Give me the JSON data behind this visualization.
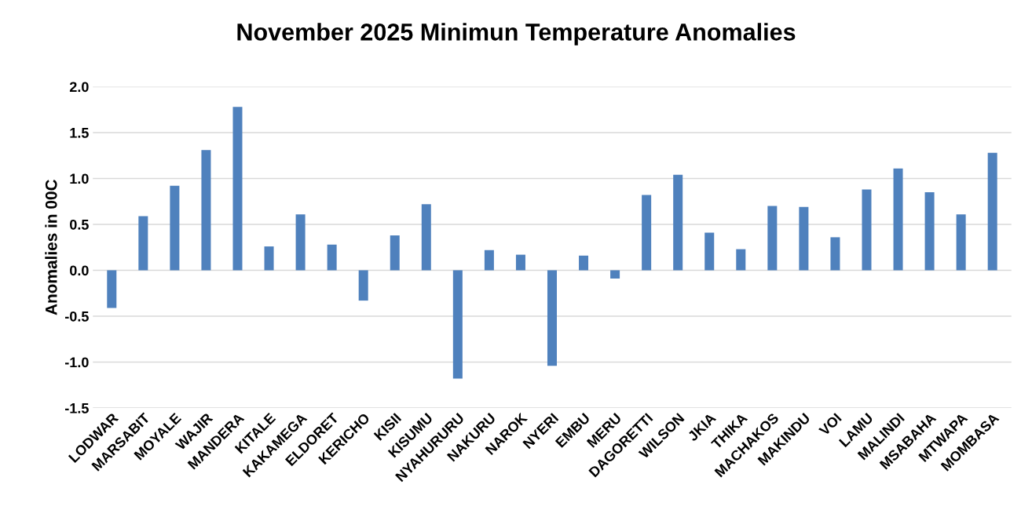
{
  "chart_data": {
    "type": "bar",
    "title": "November 2025 Minimun Temperature Anomalies",
    "ylabel": "Anomalies in 00C",
    "categories": [
      "LODWAR",
      "MARSABIT",
      "MOYALE",
      "WAJIR",
      "MANDERA",
      "KITALE",
      "KAKAMEGA",
      "ELDORET",
      "KERICHO",
      "KISII",
      "KISUMU",
      "NYAHURURU",
      "NAKURU",
      "NAROK",
      "NYERI",
      "EMBU",
      "MERU",
      "DAGORETTI",
      "WILSON",
      "JKIA",
      "THIKA",
      "MACHAKOS",
      "MAKINDU",
      "VOI",
      "LAMU",
      "MALINDI",
      "MSABAHA",
      "MTWAPA",
      "MOMBASA"
    ],
    "values": [
      -0.41,
      0.59,
      0.92,
      1.31,
      1.78,
      0.26,
      0.61,
      0.28,
      -0.33,
      0.38,
      0.72,
      -1.18,
      0.22,
      0.17,
      -1.04,
      0.16,
      -0.09,
      0.82,
      1.04,
      0.41,
      0.23,
      0.7,
      0.69,
      0.36,
      0.88,
      1.11,
      0.85,
      0.61,
      1.28
    ],
    "color": "#4f81bd",
    "ylim": [
      -1.5,
      2.0
    ],
    "yticks": [
      {
        "value": -1.5,
        "label": "-1.5"
      },
      {
        "value": -1.0,
        "label": "-1.0"
      },
      {
        "value": -0.5,
        "label": "-0.5"
      },
      {
        "value": 0,
        "label": "0.0"
      },
      {
        "value": 0.5,
        "label": "0.5"
      },
      {
        "value": 1.0,
        "label": "1.0"
      },
      {
        "value": 1.5,
        "label": "1.5"
      },
      {
        "value": 2.0,
        "label": "2.0"
      }
    ],
    "grid": "y",
    "legend": false
  }
}
